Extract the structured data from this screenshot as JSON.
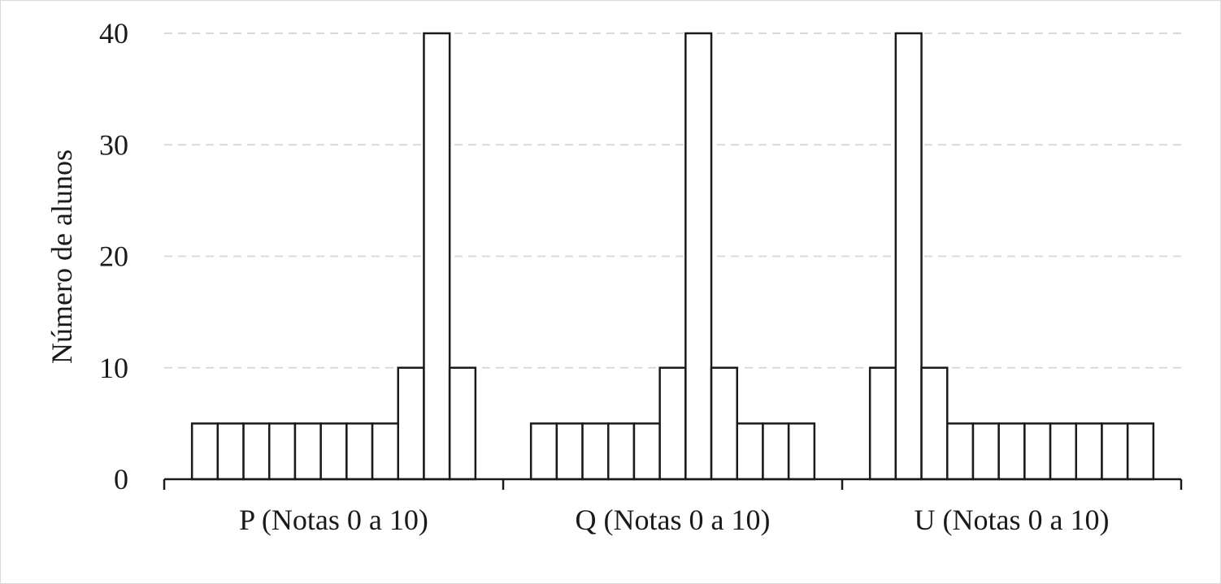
{
  "chart_data": {
    "type": "bar",
    "ylabel": "Número de alunos",
    "ylim": [
      0,
      40
    ],
    "yticks": [
      0,
      10,
      20,
      30,
      40
    ],
    "grid": true,
    "groups": [
      {
        "label": "P (Notas 0 a 10)",
        "values": [
          5,
          5,
          5,
          5,
          5,
          5,
          5,
          5,
          10,
          40,
          10
        ]
      },
      {
        "label": "Q (Notas 0 a 10)",
        "values": [
          5,
          5,
          5,
          5,
          5,
          10,
          40,
          10,
          5,
          5,
          5
        ]
      },
      {
        "label": "U (Notas 0 a 10)",
        "values": [
          10,
          40,
          10,
          5,
          5,
          5,
          5,
          5,
          5,
          5,
          5
        ]
      }
    ]
  }
}
